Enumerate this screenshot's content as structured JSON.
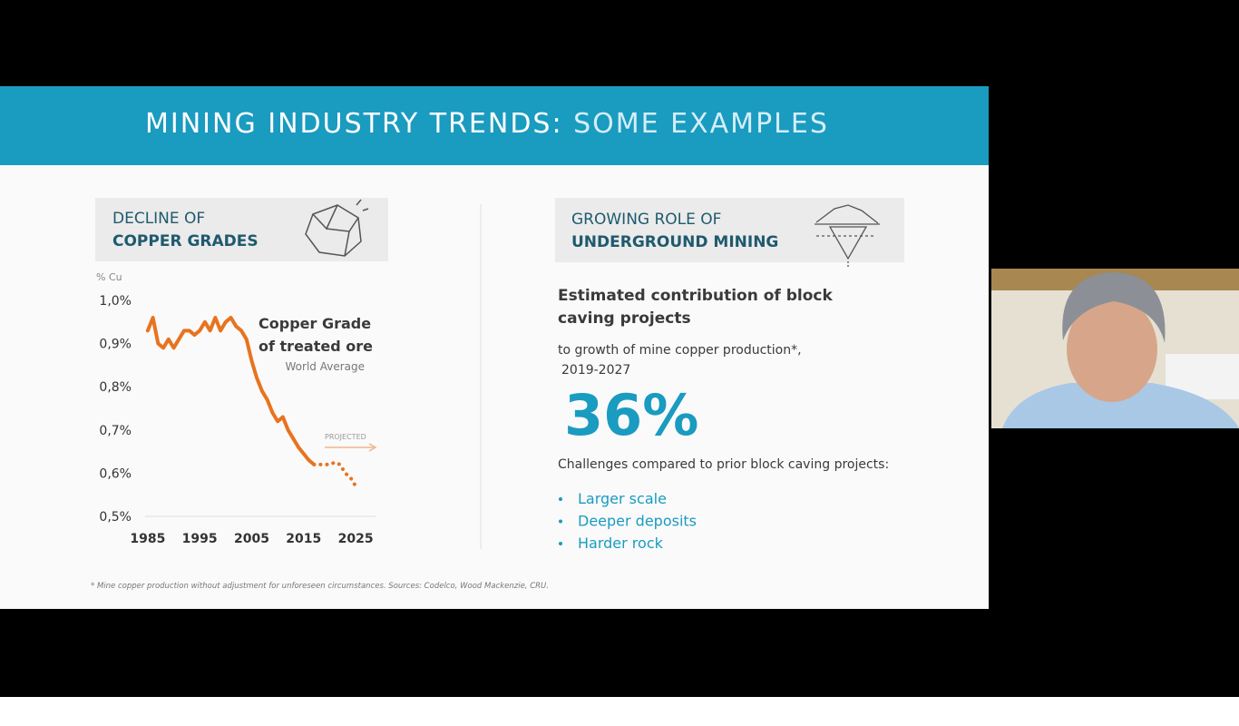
{
  "slide": {
    "title_main": "MINING INDUSTRY TRENDS:",
    "title_accent": "SOME EXAMPLES",
    "left_header": [
      "DECLINE OF",
      "COPPER GRADES"
    ],
    "right_header": [
      "GROWING ROLE OF",
      "UNDERGROUND MINING"
    ],
    "right_heading": [
      "Estimated contribution of block",
      "caving projects"
    ],
    "right_sub": [
      "to growth of mine copper production*,",
      "2019-2027"
    ],
    "big_figure": "36%",
    "challenges_intro": "Challenges compared to prior block caving projects:",
    "bullets": [
      "Larger scale",
      "Deeper deposits",
      "Harder rock"
    ],
    "footnote": "* Mine copper production without adjustment for unforeseen circumstances. Sources: Codelco, Wood Mackenzie, CRU."
  },
  "chart_data": {
    "type": "line",
    "y_label": "% Cu",
    "annotations": [
      "Copper Grade",
      "of treated ore",
      "World Average",
      "PROJECTED"
    ],
    "x": [
      1985,
      1986,
      1987,
      1988,
      1989,
      1990,
      1991,
      1992,
      1993,
      1994,
      1995,
      1996,
      1997,
      1998,
      1999,
      2000,
      2001,
      2002,
      2003,
      2004,
      2005,
      2006,
      2007,
      2008,
      2009,
      2010,
      2011,
      2012,
      2013,
      2014,
      2015,
      2016,
      2017,
      2018,
      2019,
      2020,
      2021,
      2022,
      2023,
      2024,
      2025
    ],
    "series": [
      {
        "color": "#e8731f",
        "style": "solid",
        "values": [
          0.93,
          0.96,
          0.9,
          0.89,
          0.91,
          0.89,
          0.91,
          0.93,
          0.93,
          0.92,
          0.93,
          0.95,
          0.93,
          0.96,
          0.93,
          0.95,
          0.96,
          0.94,
          0.93,
          0.91,
          0.86,
          0.82,
          0.79,
          0.77,
          0.74,
          0.72,
          0.73,
          0.7,
          0.68,
          0.66,
          0.645,
          0.63,
          0.62,
          null,
          null,
          null,
          null,
          null,
          null,
          null,
          null
        ]
      },
      {
        "color": "#e8731f",
        "style": "dotted",
        "values": [
          null,
          null,
          null,
          null,
          null,
          null,
          null,
          null,
          null,
          null,
          null,
          null,
          null,
          null,
          null,
          null,
          null,
          null,
          null,
          null,
          null,
          null,
          null,
          null,
          null,
          null,
          null,
          null,
          null,
          null,
          null,
          null,
          0.62,
          0.62,
          0.62,
          0.62,
          0.625,
          0.62,
          0.6,
          0.59,
          0.57
        ]
      }
    ],
    "xlim": [
      1984.5,
      2029
    ],
    "xticks": [
      1985,
      1995,
      2005,
      2015,
      2025
    ],
    "ylim": [
      0.5,
      1.0
    ],
    "yticks": [
      {
        "value": 0.5,
        "label": "0,5%"
      },
      {
        "value": 0.6,
        "label": "0,6%"
      },
      {
        "value": 0.7,
        "label": "0,7%"
      },
      {
        "value": 0.8,
        "label": "0,8%"
      },
      {
        "value": 0.9,
        "label": "0,9%"
      },
      {
        "value": 1.0,
        "label": "1,0%"
      }
    ],
    "grid": false
  }
}
